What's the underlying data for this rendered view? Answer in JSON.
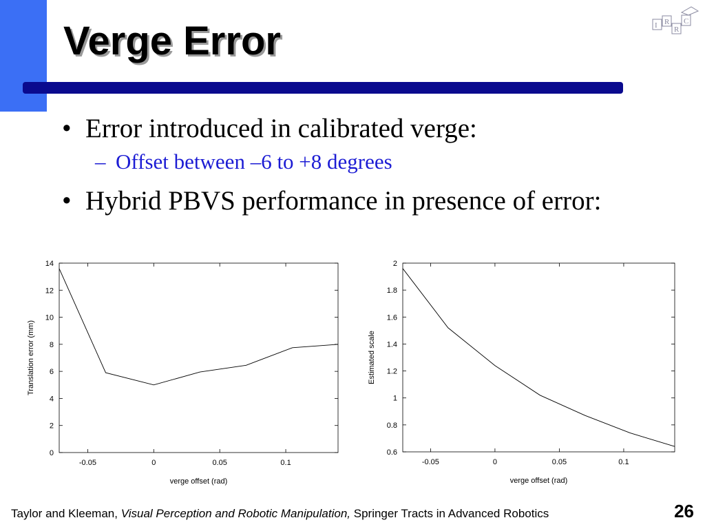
{
  "slide": {
    "title": "Verge Error",
    "bullets": [
      "Error introduced in calibrated verge:",
      "Offset between –6 to +8 degrees",
      "Hybrid PBVS performance in presence of error:"
    ],
    "footer_authors": "Taylor and Kleeman,",
    "footer_book": "Visual Perception and Robotic Manipulation,",
    "footer_series": "Springer Tracts in Advanced Robotics",
    "page_number": "26",
    "logo_letters": [
      "I",
      "R",
      "R",
      "C"
    ]
  },
  "colors": {
    "accent": "#3b6ff5",
    "rule": "#0a0a8e",
    "sub_bullet": "#1c1cd4"
  },
  "chart_data": [
    {
      "type": "line",
      "xlabel": "verge offset (rad)",
      "ylabel": "Translation error (mm)",
      "xlim": [
        -0.0716,
        0.1396
      ],
      "ylim": [
        0,
        14
      ],
      "x_ticks": [
        -0.05,
        0,
        0.05,
        0.1
      ],
      "x_tick_labels": [
        "-0.05",
        "0",
        "0.05",
        "0.1"
      ],
      "y_ticks": [
        0,
        2,
        4,
        6,
        8,
        10,
        12,
        14
      ],
      "y_tick_labels": [
        "0",
        "2",
        "4",
        "6",
        "8",
        "10",
        "12",
        "14"
      ],
      "grid": false,
      "series": [
        {
          "x": [
            -0.0716,
            -0.0364,
            0.0,
            0.035,
            0.07,
            0.105,
            0.1396
          ],
          "y": [
            13.6,
            5.9,
            5.0,
            5.95,
            6.45,
            7.75,
            8.0
          ]
        }
      ]
    },
    {
      "type": "line",
      "xlabel": "verge offset (rad)",
      "ylabel": "Estimated scale",
      "xlim": [
        -0.0716,
        0.1396
      ],
      "ylim": [
        0.6,
        2
      ],
      "x_ticks": [
        -0.05,
        0,
        0.05,
        0.1
      ],
      "x_tick_labels": [
        "-0.05",
        "0",
        "0.05",
        "0.1"
      ],
      "y_ticks": [
        0.6,
        0.8,
        1,
        1.2,
        1.4,
        1.6,
        1.8,
        2
      ],
      "y_tick_labels": [
        "0.6",
        "0.8",
        "1",
        "1.2",
        "1.4",
        "1.6",
        "1.8",
        "2"
      ],
      "grid": false,
      "series": [
        {
          "x": [
            -0.0716,
            -0.0364,
            0.0,
            0.035,
            0.07,
            0.105,
            0.1396
          ],
          "y": [
            1.96,
            1.52,
            1.24,
            1.02,
            0.87,
            0.74,
            0.64
          ]
        }
      ]
    }
  ]
}
